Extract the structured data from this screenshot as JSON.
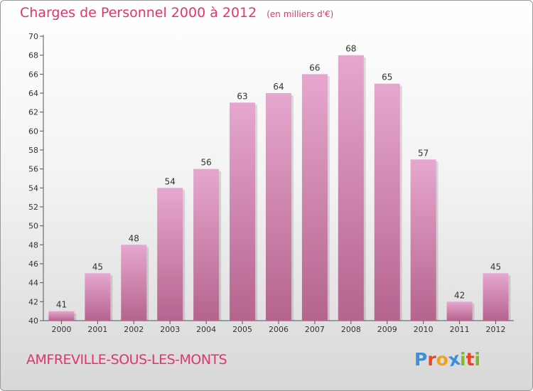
{
  "title": "Charges de Personnel 2000 à 2012",
  "unit_note": "(en milliers d'€)",
  "location": "AMFREVILLE-SOUS-LES-MONTS",
  "brand": {
    "letters": [
      "P",
      "r",
      "o",
      "x",
      "i",
      "t",
      "i"
    ],
    "colors": [
      "#3a8fd6",
      "#e8462a",
      "#f0a21b",
      "#3a8fd6",
      "#7cb833",
      "#e8462a",
      "#7cb833"
    ]
  },
  "colors": {
    "bar_top": "#e6a7ce",
    "bar_bottom": "#b5648e",
    "title": "#e0356e"
  },
  "chart_data": {
    "type": "bar",
    "categories": [
      "2000",
      "2001",
      "2002",
      "2003",
      "2004",
      "2005",
      "2006",
      "2007",
      "2008",
      "2009",
      "2010",
      "2011",
      "2012"
    ],
    "values": [
      41,
      45,
      48,
      54,
      56,
      63,
      64,
      66,
      68,
      65,
      57,
      42,
      45
    ],
    "ylim": [
      40,
      70
    ],
    "yticks": [
      40,
      42,
      44,
      46,
      48,
      50,
      52,
      54,
      56,
      58,
      60,
      62,
      64,
      66,
      68,
      70
    ],
    "grid": false,
    "data_labels": true
  }
}
